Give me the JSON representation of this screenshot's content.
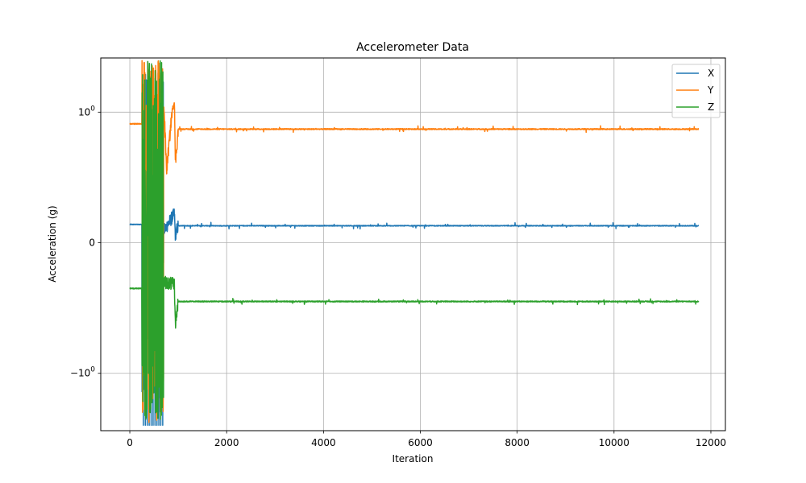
{
  "chart_data": {
    "type": "line",
    "title": "Accelerometer Data",
    "xlabel": "Iteration",
    "ylabel": "Acceleration (g)",
    "xlim": [
      -600,
      12300
    ],
    "ylim": [
      -2.75,
      2.6
    ],
    "yscale": "symlog",
    "grid": true,
    "legend_position": "top-right",
    "x_ticks": [
      0,
      2000,
      4000,
      6000,
      8000,
      10000,
      12000
    ],
    "x_tick_labels": [
      "0",
      "2000",
      "4000",
      "6000",
      "8000",
      "10000",
      "12000"
    ],
    "y_ticks": [
      -1,
      0,
      1
    ],
    "y_tick_labels": [
      {
        "base": "−10",
        "exp": "0"
      },
      {
        "base": "0",
        "exp": ""
      },
      {
        "base": "10",
        "exp": "0"
      }
    ],
    "n_points": 11750,
    "series": [
      {
        "name": "X",
        "color": "#1f77b4",
        "baseline": 0.13,
        "initial": 0.14,
        "noise": 0.006,
        "burst_range": [
          250,
          700
        ],
        "burst_min": -1.4,
        "burst_max": 2.1,
        "burst_floor": -2.5,
        "settle_points": [
          [
            700,
            0.09
          ],
          [
            920,
            0.22
          ],
          [
            940,
            0.06
          ],
          [
            1000,
            0.13
          ]
        ]
      },
      {
        "name": "Y",
        "color": "#ff7f0e",
        "baseline": 0.87,
        "initial": 0.91,
        "noise": 0.008,
        "burst_range": [
          250,
          700
        ],
        "burst_min": -2.4,
        "burst_max": 2.55,
        "settle_points": [
          [
            700,
            1.1
          ],
          [
            760,
            0.55
          ],
          [
            920,
            1.2
          ],
          [
            940,
            0.6
          ],
          [
            1000,
            0.87
          ]
        ]
      },
      {
        "name": "Z",
        "color": "#2ca02c",
        "baseline": -0.45,
        "initial": -0.35,
        "noise": 0.008,
        "burst_range": [
          250,
          700
        ],
        "burst_min": -2.25,
        "burst_max": 2.55,
        "settle_points": [
          [
            700,
            -0.3
          ],
          [
            920,
            -0.32
          ],
          [
            940,
            -0.62
          ],
          [
            1000,
            -0.45
          ]
        ]
      }
    ]
  }
}
